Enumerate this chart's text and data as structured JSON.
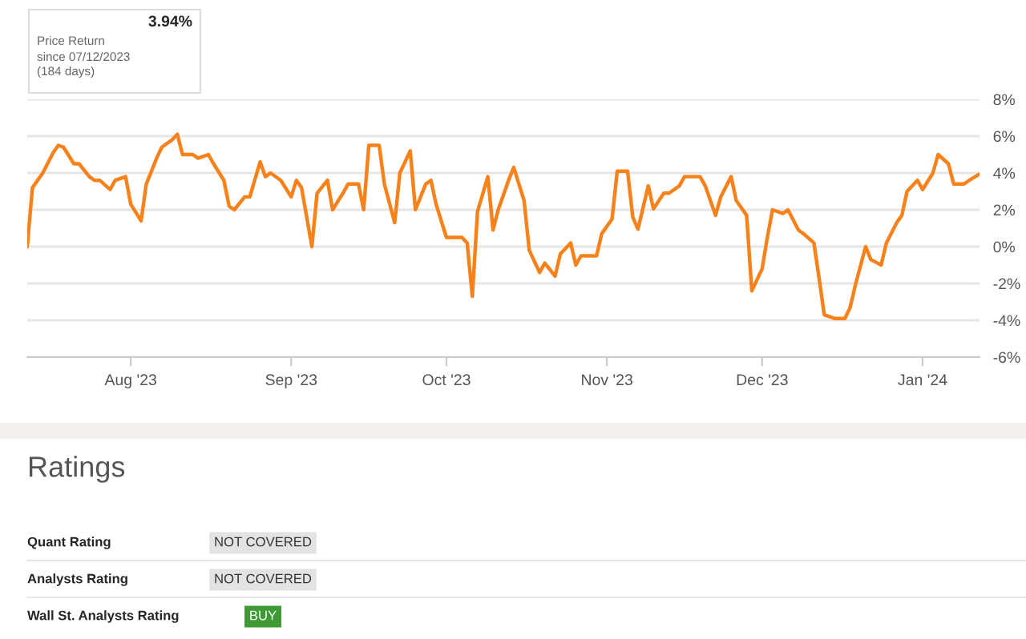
{
  "chart_data": {
    "type": "line",
    "x": [
      "2023-07-12",
      "2023-07-13",
      "2023-07-15",
      "2023-07-17",
      "2023-07-18",
      "2023-07-19",
      "2023-07-21",
      "2023-07-22",
      "2023-07-24",
      "2023-07-25",
      "2023-07-26",
      "2023-07-28",
      "2023-07-29",
      "2023-07-31",
      "2023-08-01",
      "2023-08-03",
      "2023-08-04",
      "2023-08-06",
      "2023-08-07",
      "2023-08-09",
      "2023-08-10",
      "2023-08-11",
      "2023-08-13",
      "2023-08-14",
      "2023-08-16",
      "2023-08-17",
      "2023-08-19",
      "2023-08-20",
      "2023-08-21",
      "2023-08-23",
      "2023-08-24",
      "2023-08-26",
      "2023-08-27",
      "2023-08-28",
      "2023-08-30",
      "2023-09-01",
      "2023-09-02",
      "2023-09-03",
      "2023-09-05",
      "2023-09-06",
      "2023-09-08",
      "2023-09-09",
      "2023-09-11",
      "2023-09-12",
      "2023-09-14",
      "2023-09-15",
      "2023-09-16",
      "2023-09-18",
      "2023-09-19",
      "2023-09-21",
      "2023-09-22",
      "2023-09-24",
      "2023-09-25",
      "2023-09-27",
      "2023-09-28",
      "2023-09-29",
      "2023-10-01",
      "2023-10-02",
      "2023-10-04",
      "2023-10-05",
      "2023-10-06",
      "2023-10-07",
      "2023-10-09",
      "2023-10-10",
      "2023-10-11",
      "2023-10-13",
      "2023-10-14",
      "2023-10-16",
      "2023-10-17",
      "2023-10-19",
      "2023-10-20",
      "2023-10-22",
      "2023-10-23",
      "2023-10-25",
      "2023-10-26",
      "2023-10-27",
      "2023-10-30",
      "2023-10-31",
      "2023-11-02",
      "2023-11-03",
      "2023-11-05",
      "2023-11-06",
      "2023-11-07",
      "2023-11-09",
      "2023-11-10",
      "2023-11-12",
      "2023-11-13",
      "2023-11-15",
      "2023-11-16",
      "2023-11-18",
      "2023-11-19",
      "2023-11-20",
      "2023-11-22",
      "2023-11-23",
      "2023-11-25",
      "2023-11-26",
      "2023-11-28",
      "2023-11-29",
      "2023-12-01",
      "2023-12-02",
      "2023-12-03",
      "2023-12-05",
      "2023-12-06",
      "2023-12-08",
      "2023-12-09",
      "2023-12-11",
      "2023-12-12",
      "2023-12-13",
      "2023-12-15",
      "2023-12-17",
      "2023-12-18",
      "2023-12-19",
      "2023-12-21",
      "2023-12-22",
      "2023-12-24",
      "2023-12-25",
      "2023-12-27",
      "2023-12-28",
      "2023-12-29",
      "2023-12-31",
      "2024-01-01",
      "2024-01-03",
      "2024-01-04",
      "2024-01-06",
      "2024-01-07",
      "2024-01-09",
      "2024-01-10",
      "2024-01-12"
    ],
    "series": [
      {
        "color": "#f7821b",
        "values": [
          0,
          3.2,
          4.0,
          5.1,
          5.5,
          5.4,
          4.5,
          4.5,
          3.8,
          3.6,
          3.6,
          3.1,
          3.6,
          3.8,
          2.3,
          1.4,
          3.4,
          4.8,
          5.4,
          5.8,
          6.1,
          5.0,
          5.0,
          4.8,
          5.0,
          4.5,
          3.6,
          2.2,
          2.0,
          2.7,
          2.7,
          4.6,
          3.8,
          4.0,
          3.6,
          2.7,
          3.6,
          3.2,
          0,
          2.9,
          3.6,
          2.0,
          2.9,
          3.4,
          3.4,
          2.0,
          5.5,
          5.5,
          3.4,
          1.3,
          4.0,
          5.2,
          2.0,
          3.4,
          3.6,
          2.3,
          0.5,
          0.5,
          0.5,
          0.2,
          -2.7,
          1.9,
          3.8,
          0.9,
          2.0,
          3.6,
          4.3,
          2.5,
          -0.2,
          -1.4,
          -0.9,
          -1.6,
          -0.4,
          0.2,
          -1.0,
          -0.5,
          -0.5,
          0.7,
          1.5,
          4.1,
          4.1,
          1.6,
          0.95,
          3.3,
          2.05,
          2.9,
          2.9,
          3.3,
          3.8,
          3.8,
          3.8,
          3.3,
          1.7,
          2.7,
          3.8,
          2.5,
          1.7,
          -2.4,
          -1.2,
          0.5,
          2.0,
          1.8,
          2.0,
          0.9,
          0.7,
          0.2,
          -1.7,
          -3.7,
          -3.9,
          -3.9,
          -3.3,
          -2.1,
          0,
          -0.7,
          -1.0,
          0.2,
          1.3,
          1.7,
          3.0,
          3.6,
          3.1,
          4.0,
          5.0,
          4.5,
          3.4,
          3.4,
          3.6,
          3.94
        ]
      }
    ],
    "xlim": [
      "2023-07-12",
      "2024-01-12"
    ],
    "xticks": [
      {
        "value": "2023-08-01",
        "label": "Aug '23"
      },
      {
        "value": "2023-09-01",
        "label": "Sep '23"
      },
      {
        "value": "2023-10-01",
        "label": "Oct '23"
      },
      {
        "value": "2023-11-01",
        "label": "Nov '23"
      },
      {
        "value": "2023-12-01",
        "label": "Dec '23"
      },
      {
        "value": "2024-01-01",
        "label": "Jan '24"
      }
    ],
    "ylim": [
      -6,
      8
    ],
    "yticks": [
      {
        "value": 8,
        "label": "8%"
      },
      {
        "value": 6,
        "label": "6%"
      },
      {
        "value": 4,
        "label": "4%"
      },
      {
        "value": 2,
        "label": "2%"
      },
      {
        "value": 0,
        "label": "0%"
      },
      {
        "value": -2,
        "label": "-2%"
      },
      {
        "value": -4,
        "label": "-4%"
      },
      {
        "value": -6,
        "label": "-6%"
      }
    ],
    "grid": "y",
    "marker": "none",
    "line_style": "solid",
    "annotations": [
      "3.94%",
      "Price Return",
      "since 07/12/2023",
      "(184 days)",
      "Ratings",
      "Quant Rating",
      "NOT COVERED",
      "Analysts Rating",
      "NOT COVERED",
      "Wall St. Analysts Rating",
      "BUY"
    ]
  }
}
